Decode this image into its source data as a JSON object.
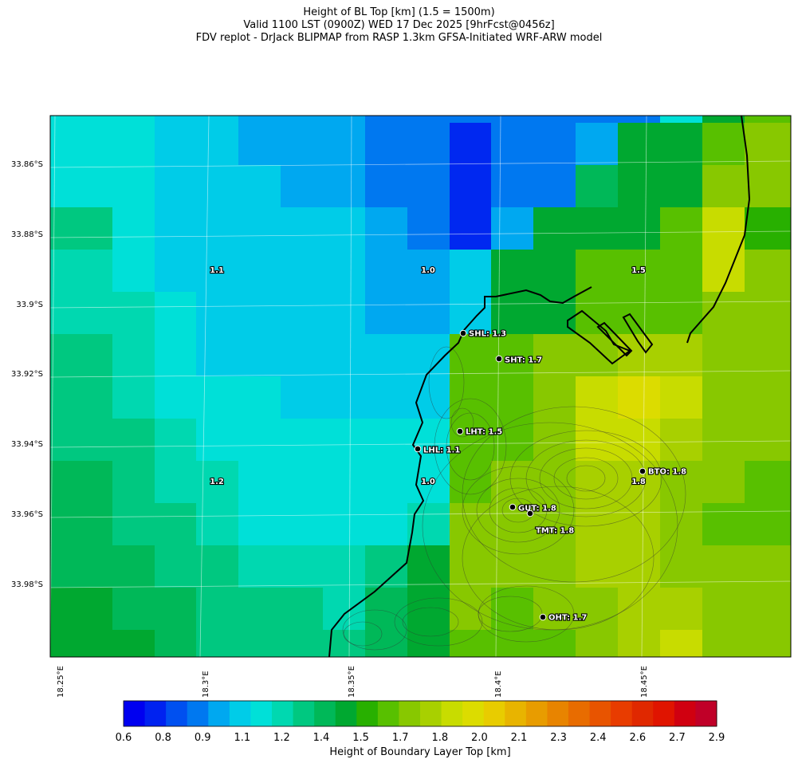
{
  "title": {
    "line1": "Height of BL Top [km] (1.5 = 1500m)",
    "line2": "Valid 1100 LST (0900Z) WED 17 Dec 2025 [9hrFcst@0456z]",
    "line3": "FDV replot - DrJack BLIPMAP from RASP 1.3km GFSA-Initiated WRF-ARW model"
  },
  "axes": {
    "lat_labels": [
      "33.86°S",
      "33.88°S",
      "33.9°S",
      "33.92°S",
      "33.94°S",
      "33.96°S",
      "33.98°S"
    ],
    "lon_labels": [
      "18.25°E",
      "18.3°E",
      "18.35°E",
      "18.4°E",
      "18.45°E"
    ]
  },
  "grid_labels": [
    {
      "text": "1.1"
    },
    {
      "text": "1.0"
    },
    {
      "text": "1.5"
    },
    {
      "text": "1.2"
    },
    {
      "text": "1.0"
    },
    {
      "text": "1.8"
    }
  ],
  "stations": [
    {
      "code": "SHL",
      "value": "1.3",
      "label": "SHL: 1.3"
    },
    {
      "code": "SHT",
      "value": "1.7",
      "label": "SHT: 1.7"
    },
    {
      "code": "LHT",
      "value": "1.5",
      "label": "LHT: 1.5"
    },
    {
      "code": "LHL",
      "value": "1.1",
      "label": "LHL: 1.1"
    },
    {
      "code": "BTO",
      "value": "1.8",
      "label": "BTO: 1.8"
    },
    {
      "code": "GUT",
      "value": "1.8",
      "label": "GUT: 1.8"
    },
    {
      "code": "TMT",
      "value": "1.8",
      "label": "TMT: 1.8"
    },
    {
      "code": "OHT",
      "value": "1.7",
      "label": "OHT: 1.7"
    }
  ],
  "colorbar": {
    "title": "Height of Boundary Layer Top [km]",
    "ticks": [
      "0.6",
      "0.8",
      "0.9",
      "1.1",
      "1.2",
      "1.4",
      "1.5",
      "1.7",
      "1.8",
      "2.0",
      "2.1",
      "2.3",
      "2.4",
      "2.6",
      "2.7",
      "2.9"
    ],
    "colors": [
      "#0000f0",
      "#0022f0",
      "#0050f0",
      "#0078f0",
      "#00a8f0",
      "#00cce8",
      "#00e0d8",
      "#00d8b0",
      "#00c880",
      "#00b858",
      "#00a830",
      "#28b000",
      "#58c000",
      "#88c800",
      "#a8d000",
      "#c8dc00",
      "#dcdc00",
      "#e8cc00",
      "#e8b400",
      "#e89c00",
      "#e88400",
      "#e86c00",
      "#e85400",
      "#e83c00",
      "#e02800",
      "#e01400",
      "#d00010",
      "#c00028"
    ]
  },
  "grid_colors": {
    "c08": "#0028f0",
    "c09": "#0078f0",
    "c095": "#00a8f0",
    "c10": "#00cce8",
    "c11": "#00e0d8",
    "c115": "#00d8b0",
    "c12": "#00c880",
    "c13": "#00b858",
    "c14": "#00a830",
    "c15": "#28b000",
    "c16": "#58c000",
    "c17": "#88c800",
    "c18": "#a8d000",
    "c19": "#c8dc00",
    "c20": "#dcdc00"
  }
}
